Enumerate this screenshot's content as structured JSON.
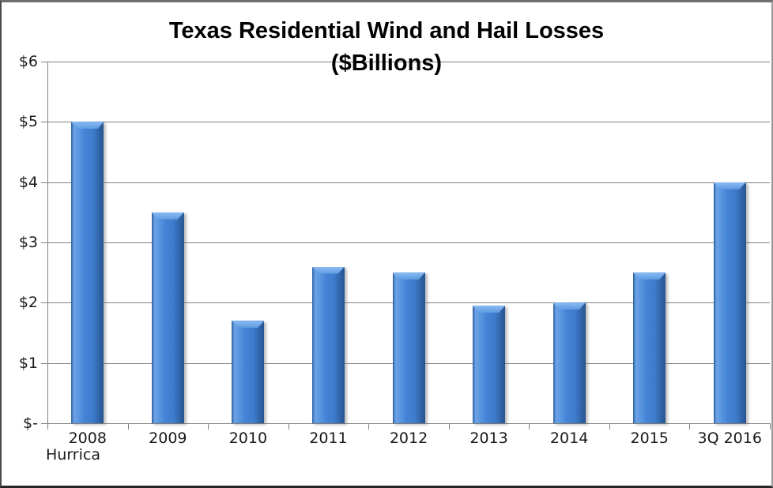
{
  "chart_data": {
    "type": "bar",
    "title": "Texas Residential Wind and Hail Losses",
    "subtitle": "($Billions)",
    "categories": [
      "2008",
      "2009",
      "2010",
      "2011",
      "2012",
      "2013",
      "2014",
      "2015",
      "3Q 2016"
    ],
    "values": [
      5.0,
      3.5,
      1.7,
      2.6,
      2.5,
      1.95,
      2.0,
      2.5,
      4.0
    ],
    "xlabel": "",
    "ylabel": "",
    "ylim": [
      0,
      6
    ],
    "y_ticks": [
      {
        "label": "$6",
        "value": 6
      },
      {
        "label": "$5",
        "value": 5
      },
      {
        "label": "$4",
        "value": 4
      },
      {
        "label": "$3",
        "value": 3
      },
      {
        "label": "$2",
        "value": 2
      },
      {
        "label": "$1",
        "value": 1
      },
      {
        "label": "$-",
        "value": 0
      }
    ],
    "annotation": {
      "text": "Hurrica",
      "category": "2008"
    },
    "legend_position": "none",
    "grid": "horizontal",
    "colors": {
      "bar_fill_center": "#4384d6",
      "bar_fill_edge": "#2a5b9c",
      "bar_bevel_highlight": "#8cbcf2",
      "gridline": "#808080",
      "axis_line": "#808080",
      "text": "#1a1a1a",
      "title_text": "#000000",
      "background": "#ffffff"
    }
  }
}
